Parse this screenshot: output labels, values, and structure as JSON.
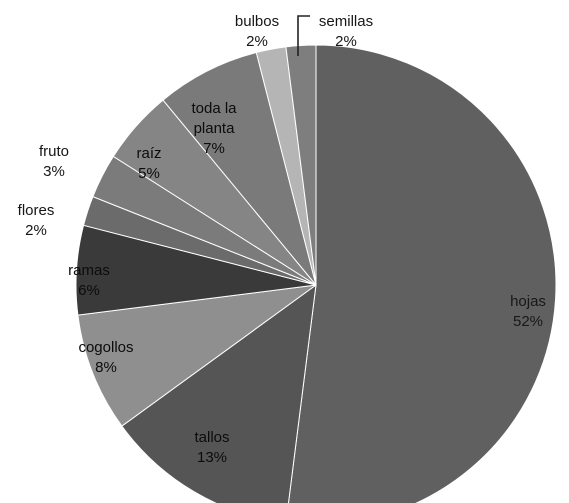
{
  "chart_data": {
    "type": "pie",
    "title": "",
    "start_angle_deg": 0,
    "direction": "clockwise",
    "slices": [
      {
        "label": "hojas",
        "value": 52,
        "display": "52%",
        "color": "#606060"
      },
      {
        "label": "tallos",
        "value": 13,
        "display": "13%",
        "color": "#555555"
      },
      {
        "label": "cogollos",
        "value": 8,
        "display": "8%",
        "color": "#8f8f8f"
      },
      {
        "label": "ramas",
        "value": 6,
        "display": "6%",
        "color": "#3a3a3a"
      },
      {
        "label": "flores",
        "value": 2,
        "display": "2%",
        "color": "#6b6b6b"
      },
      {
        "label": "fruto",
        "value": 3,
        "display": "3%",
        "color": "#7b7b7b"
      },
      {
        "label": "raíz",
        "value": 5,
        "display": "5%",
        "color": "#858585"
      },
      {
        "label": "toda la planta",
        "lines": [
          "toda la",
          "planta"
        ],
        "value": 7,
        "display": "7%",
        "color": "#7a7a7a"
      },
      {
        "label": "bulbos",
        "value": 2,
        "display": "2%",
        "color": "#b5b5b5"
      },
      {
        "label": "semillas",
        "value": 2,
        "display": "2%",
        "color": "#7e7e7e"
      }
    ]
  }
}
